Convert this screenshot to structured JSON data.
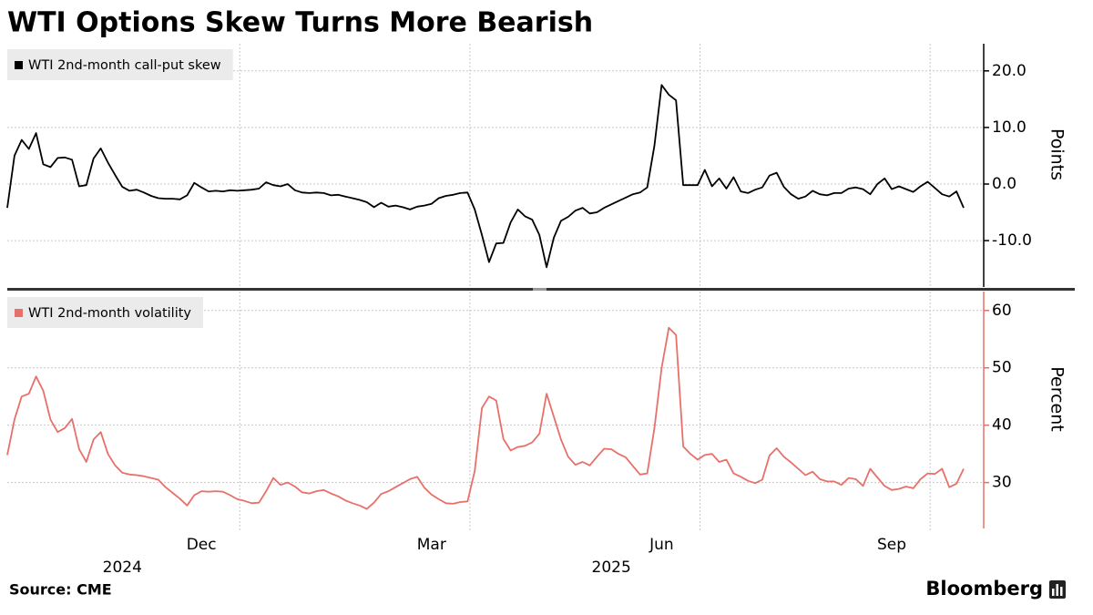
{
  "title": "WTI Options Skew Turns More Bearish",
  "source": "Source: CME",
  "brand": "Bloomberg",
  "chart_data": [
    {
      "type": "line",
      "legend": "top-left",
      "grid": true,
      "y_label": "Points",
      "ylim": [
        -18.2,
        24.8
      ],
      "yticks": [
        {
          "value": -10,
          "label": "-10.0"
        },
        {
          "value": 0,
          "label": "0.0"
        },
        {
          "value": 10,
          "label": "10.0"
        },
        {
          "value": 20,
          "label": "20.0"
        }
      ],
      "series": [
        {
          "name": "WTI 2nd-month call-put skew",
          "color": "#000000",
          "values": [
            -4.2,
            5,
            7.8,
            6.2,
            9,
            3.5,
            3,
            4.6,
            4.7,
            4.3,
            -0.4,
            -0.2,
            4.5,
            6.3,
            3.8,
            1.6,
            -0.5,
            -1.2,
            -1,
            -1.5,
            -2.1,
            -2.5,
            -2.6,
            -2.6,
            -2.7,
            -2,
            0.2,
            -0.6,
            -1.3,
            -1.2,
            -1.3,
            -1.1,
            -1.2,
            -1.1,
            -1,
            -0.8,
            0.3,
            -0.2,
            -0.4,
            0,
            -1.1,
            -1.5,
            -1.6,
            -1.5,
            -1.6,
            -2,
            -1.9,
            -2.2,
            -2.5,
            -2.8,
            -3.2,
            -4.1,
            -3.3,
            -4,
            -3.8,
            -4.1,
            -4.5,
            -4,
            -3.8,
            -3.5,
            -2.5,
            -2.1,
            -1.9,
            -1.6,
            -1.5,
            -4.5,
            -9,
            -13.8,
            -10.5,
            -10.4,
            -6.8,
            -4.5,
            -5.7,
            -6.3,
            -9,
            -14.7,
            -9.5,
            -6.5,
            -5.8,
            -4.7,
            -4.2,
            -5.2,
            -5,
            -4.2,
            -3.6,
            -3,
            -2.4,
            -1.8,
            -1.5,
            -0.6,
            6.8,
            17.5,
            15.8,
            14.8,
            -0.2,
            -0.2,
            -0.2,
            2.5,
            -0.4,
            1,
            -0.8,
            1.2,
            -1.3,
            -1.6,
            -1,
            -0.6,
            1.5,
            2,
            -0.5,
            -1.8,
            -2.6,
            -2.2,
            -1.2,
            -1.8,
            -2,
            -1.6,
            -1.6,
            -0.8,
            -0.6,
            -0.9,
            -1.8,
            0,
            1,
            -0.9,
            -0.4,
            -0.9,
            -1.4,
            -0.4,
            0.4,
            -0.7,
            -1.8,
            -2.2,
            -1.3,
            -4.2
          ]
        }
      ]
    },
    {
      "type": "line",
      "legend": "top-left",
      "grid": true,
      "y_label": "Percent",
      "ylim": [
        22,
        63.3
      ],
      "yticks": [
        30,
        40,
        50,
        60
      ],
      "categories": [
        null,
        null,
        null,
        null,
        null,
        null,
        null,
        null,
        null,
        null,
        null,
        null,
        null,
        null,
        null,
        null,
        null,
        null,
        null,
        null,
        null,
        null,
        null,
        null,
        null,
        null,
        null,
        "Dec",
        null,
        null,
        null,
        null,
        null,
        null,
        null,
        null,
        null,
        null,
        null,
        null,
        null,
        null,
        null,
        null,
        null,
        null,
        null,
        null,
        null,
        null,
        null,
        null,
        null,
        null,
        null,
        null,
        null,
        null,
        null,
        "Mar",
        null,
        null,
        null,
        null,
        null,
        null,
        null,
        null,
        null,
        null,
        null,
        null,
        null,
        null,
        null,
        null,
        null,
        null,
        null,
        null,
        null,
        null,
        null,
        null,
        null,
        null,
        null,
        null,
        null,
        null,
        null,
        "Jun",
        null,
        null,
        null,
        null,
        null,
        null,
        null,
        null,
        null,
        null,
        null,
        null,
        null,
        null,
        null,
        null,
        null,
        null,
        null,
        null,
        null,
        null,
        null,
        null,
        null,
        null,
        null,
        null,
        null,
        null,
        null,
        "Sep",
        null,
        null,
        null,
        null,
        null,
        null,
        null,
        null,
        null,
        null
      ],
      "year_labels": [
        null,
        null,
        null,
        null,
        null,
        null,
        null,
        null,
        null,
        null,
        null,
        null,
        null,
        null,
        null,
        null,
        "2024",
        null,
        null,
        null,
        null,
        null,
        null,
        null,
        null,
        null,
        null,
        null,
        null,
        null,
        null,
        null,
        null,
        null,
        null,
        null,
        null,
        null,
        null,
        null,
        null,
        null,
        null,
        null,
        null,
        null,
        null,
        null,
        null,
        null,
        null,
        null,
        null,
        null,
        null,
        null,
        null,
        null,
        null,
        null,
        null,
        null,
        null,
        null,
        null,
        null,
        null,
        null,
        null,
        null,
        null,
        null,
        null,
        null,
        null,
        null,
        null,
        null,
        null,
        null,
        null,
        null,
        null,
        null,
        "2025",
        null,
        null,
        null,
        null,
        null,
        null,
        null,
        null,
        null,
        null,
        null,
        null,
        null,
        null,
        null,
        null,
        null,
        null,
        null,
        null,
        null,
        null,
        null,
        null,
        null,
        null,
        null,
        null,
        null,
        null,
        null,
        null,
        null,
        null,
        null,
        null,
        null,
        null,
        null,
        null,
        null,
        null,
        null,
        null,
        null,
        null,
        null,
        null,
        null
      ],
      "series": [
        {
          "name": "WTI 2nd-month volatility",
          "color": "#e8706a",
          "values": [
            34.8,
            41,
            45,
            45.5,
            48.5,
            46,
            41,
            38.8,
            39.5,
            41.1,
            35.8,
            33.6,
            37.5,
            38.8,
            35,
            33,
            31.7,
            31.4,
            31.3,
            31.1,
            30.8,
            30.5,
            29.2,
            28.2,
            27.2,
            26,
            27.8,
            28.5,
            28.4,
            28.5,
            28.4,
            27.8,
            27.1,
            26.8,
            26.4,
            26.5,
            28.5,
            30.8,
            29.6,
            30,
            29.3,
            28.3,
            28.1,
            28.5,
            28.7,
            28.1,
            27.6,
            26.9,
            26.4,
            26,
            25.4,
            26.5,
            28,
            28.5,
            29.2,
            29.9,
            30.6,
            31,
            29.1,
            27.9,
            27.1,
            26.4,
            26.3,
            26.6,
            26.7,
            32,
            43,
            45,
            44.3,
            37.6,
            35.6,
            36.2,
            36.4,
            37,
            38.5,
            45.5,
            41.5,
            37.5,
            34.5,
            33.1,
            33.6,
            33,
            34.5,
            35.9,
            35.8,
            35,
            34.4,
            32.9,
            31.4,
            31.6,
            39.5,
            50,
            57,
            55.7,
            36.3,
            35,
            34,
            34.8,
            35,
            33.6,
            34,
            31.6,
            31,
            30.3,
            29.9,
            30.5,
            34.7,
            36,
            34.5,
            33.5,
            32.4,
            31.3,
            31.9,
            30.6,
            30.2,
            30.2,
            29.6,
            30.8,
            30.6,
            29.4,
            32.4,
            30.9,
            29.4,
            28.7,
            28.9,
            29.3,
            29,
            30.6,
            31.6,
            31.5,
            32.4,
            29.2,
            29.8,
            32.4
          ]
        }
      ]
    }
  ]
}
